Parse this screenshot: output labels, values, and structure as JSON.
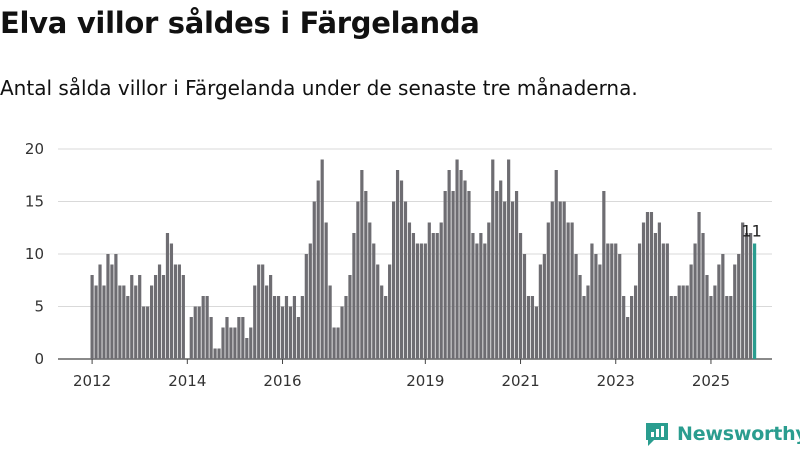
{
  "title": "Elva villor såldes i Färgelanda",
  "subtitle": "Antal sålda villor i Färgelanda under de senaste tre månaderna.",
  "brand": {
    "name": "Newsworthy",
    "color": "#2a9d8f"
  },
  "chart_data": {
    "type": "bar",
    "title": "Elva villor såldes i Färgelanda",
    "ylim": [
      0,
      20
    ],
    "yticks": [
      "0",
      "5",
      "10",
      "15",
      "20"
    ],
    "xticks": [
      "2012",
      "2014",
      "2016",
      "2019",
      "2021",
      "2023",
      "2025"
    ],
    "grid": true,
    "bar_color": "#6e6d72",
    "highlight_color": "#2a9d8f",
    "highlight_label": "11",
    "values": [
      8,
      7,
      9,
      7,
      10,
      9,
      10,
      7,
      7,
      6,
      8,
      7,
      8,
      5,
      5,
      7,
      8,
      9,
      8,
      12,
      11,
      9,
      9,
      8,
      0,
      4,
      5,
      5,
      6,
      6,
      4,
      1,
      1,
      3,
      4,
      3,
      3,
      4,
      4,
      2,
      3,
      7,
      9,
      9,
      7,
      8,
      6,
      6,
      5,
      6,
      5,
      6,
      4,
      6,
      10,
      11,
      15,
      17,
      19,
      13,
      7,
      3,
      3,
      5,
      6,
      8,
      12,
      15,
      18,
      16,
      13,
      11,
      9,
      7,
      6,
      9,
      15,
      18,
      17,
      15,
      13,
      12,
      11,
      11,
      11,
      13,
      12,
      12,
      13,
      16,
      18,
      16,
      19,
      18,
      17,
      16,
      12,
      11,
      12,
      11,
      13,
      19,
      16,
      17,
      15,
      19,
      15,
      16,
      12,
      10,
      6,
      6,
      5,
      9,
      10,
      13,
      15,
      18,
      15,
      15,
      13,
      13,
      10,
      8,
      6,
      7,
      11,
      10,
      9,
      16,
      11,
      11,
      11,
      10,
      6,
      4,
      6,
      7,
      11,
      13,
      14,
      14,
      12,
      13,
      11,
      11,
      6,
      6,
      7,
      7,
      7,
      9,
      11,
      14,
      12,
      8,
      6,
      7,
      9,
      10,
      6,
      6,
      9,
      10,
      13,
      12,
      12,
      11
    ]
  }
}
